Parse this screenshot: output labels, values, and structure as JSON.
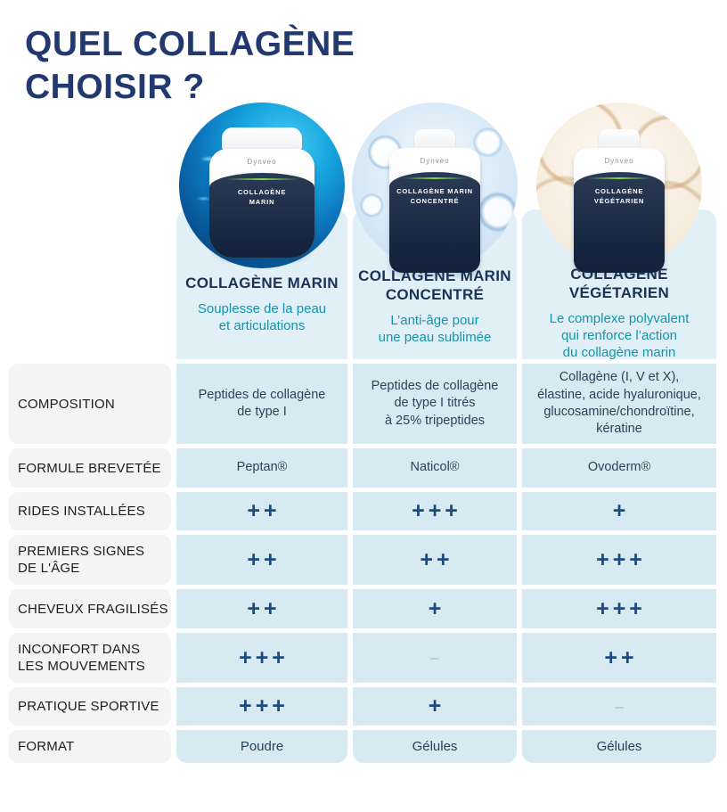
{
  "title": {
    "line1": "QUEL COLLAGÈNE",
    "line2": "CHOISIR ?"
  },
  "products": [
    {
      "brand": "Dynveo",
      "bottle_label_lines": [
        "COLLAGÈNE",
        "MARIN"
      ],
      "name_lines": [
        "COLLAGÈNE MARIN"
      ],
      "tagline_lines": [
        "Souplesse de la peau",
        "et articulations"
      ],
      "image_theme": "ocean-blue-fish"
    },
    {
      "brand": "Dynveo",
      "bottle_label_lines": [
        "COLLAGÈNE MARIN",
        "CONCENTRÉ"
      ],
      "name_lines": [
        "COLLAGÈNE MARIN",
        "CONCENTRÉ"
      ],
      "tagline_lines": [
        "L’anti-âge pour",
        "une peau sublimée"
      ],
      "image_theme": "water-bubbles"
    },
    {
      "brand": "Dynveo",
      "bottle_label_lines": [
        "COLLAGÈNE",
        "VÉGÉTARIEN"
      ],
      "name_lines": [
        "COLLAGÈNE",
        "VÉGÉTARIEN"
      ],
      "tagline_lines": [
        "Le complexe polyvalent",
        "qui renforce l’action",
        "du collagène marin"
      ],
      "image_theme": "eggshell-beige"
    }
  ],
  "rows": [
    {
      "label_lines": [
        "COMPOSITION"
      ],
      "type": "text",
      "cells": [
        [
          "Peptides de collagène",
          "de type I"
        ],
        [
          "Peptides de collagène",
          "de type I titrés",
          "à 25% tripeptides"
        ],
        [
          "Collagène (I, V et X),",
          "élastine, acide hyaluronique,",
          "glucosamine/chondroïtine,",
          "kératine"
        ]
      ]
    },
    {
      "label_lines": [
        "FORMULE BREVETÉE"
      ],
      "type": "text",
      "cells": [
        [
          "Peptan®"
        ],
        [
          "Naticol®"
        ],
        [
          "Ovoderm®"
        ]
      ]
    },
    {
      "label_lines": [
        "RIDES INSTALLÉES"
      ],
      "type": "rating",
      "cells": [
        [
          "++"
        ],
        [
          "+++"
        ],
        [
          "+"
        ]
      ]
    },
    {
      "label_lines": [
        "PREMIERS SIGNES",
        "DE L'ÂGE"
      ],
      "type": "rating",
      "cells": [
        [
          "++"
        ],
        [
          "++"
        ],
        [
          "+++"
        ]
      ]
    },
    {
      "label_lines": [
        "CHEVEUX FRAGILISÉS"
      ],
      "type": "rating",
      "cells": [
        [
          "++"
        ],
        [
          "+"
        ],
        [
          "+++"
        ]
      ]
    },
    {
      "label_lines": [
        "INCONFORT DANS",
        "LES MOUVEMENTS"
      ],
      "type": "rating",
      "cells": [
        [
          "+++"
        ],
        [
          "–"
        ],
        [
          "++"
        ]
      ]
    },
    {
      "label_lines": [
        "PRATIQUE SPORTIVE"
      ],
      "type": "rating",
      "cells": [
        [
          "+++"
        ],
        [
          "+"
        ],
        [
          "–"
        ]
      ]
    },
    {
      "label_lines": [
        "FORMAT"
      ],
      "type": "text",
      "cells": [
        [
          "Poudre"
        ],
        [
          "Gélules"
        ],
        [
          "Gélules"
        ]
      ]
    }
  ],
  "colors": {
    "title_navy": "#21396e",
    "product_name_navy": "#1c3156",
    "tagline_teal": "#1593ac",
    "plus_navy": "#1a4a7e",
    "dash_gray": "#9fb7c6",
    "cell_blue": "#d8eaf1",
    "header_chip_blue": "#e1f0f6",
    "label_chip_gray": "#f4f4f5"
  }
}
